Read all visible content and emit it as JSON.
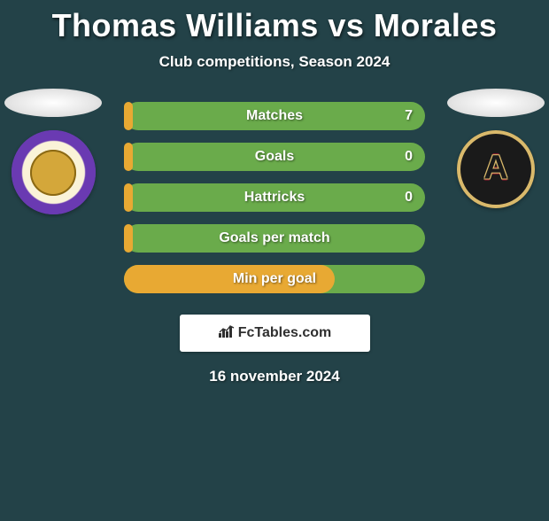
{
  "title": "Thomas Williams vs Morales",
  "subtitle": "Club competitions, Season 2024",
  "date": "16 november 2024",
  "site": "FcTables.com",
  "colors": {
    "background": "#234248",
    "bar_bg": "#6aab4b",
    "bar_fill": "#e8a933",
    "text": "#ffffff"
  },
  "stats": [
    {
      "label": "Matches",
      "value": "7",
      "fill_pct": 3
    },
    {
      "label": "Goals",
      "value": "0",
      "fill_pct": 3
    },
    {
      "label": "Hattricks",
      "value": "0",
      "fill_pct": 3
    },
    {
      "label": "Goals per match",
      "value": "",
      "fill_pct": 3
    },
    {
      "label": "Min per goal",
      "value": "",
      "fill_pct": 70
    }
  ],
  "left_club": {
    "name": "Orlando City",
    "badge": "orlando"
  },
  "right_club": {
    "name": "Atlanta United FC",
    "badge": "atlanta"
  }
}
